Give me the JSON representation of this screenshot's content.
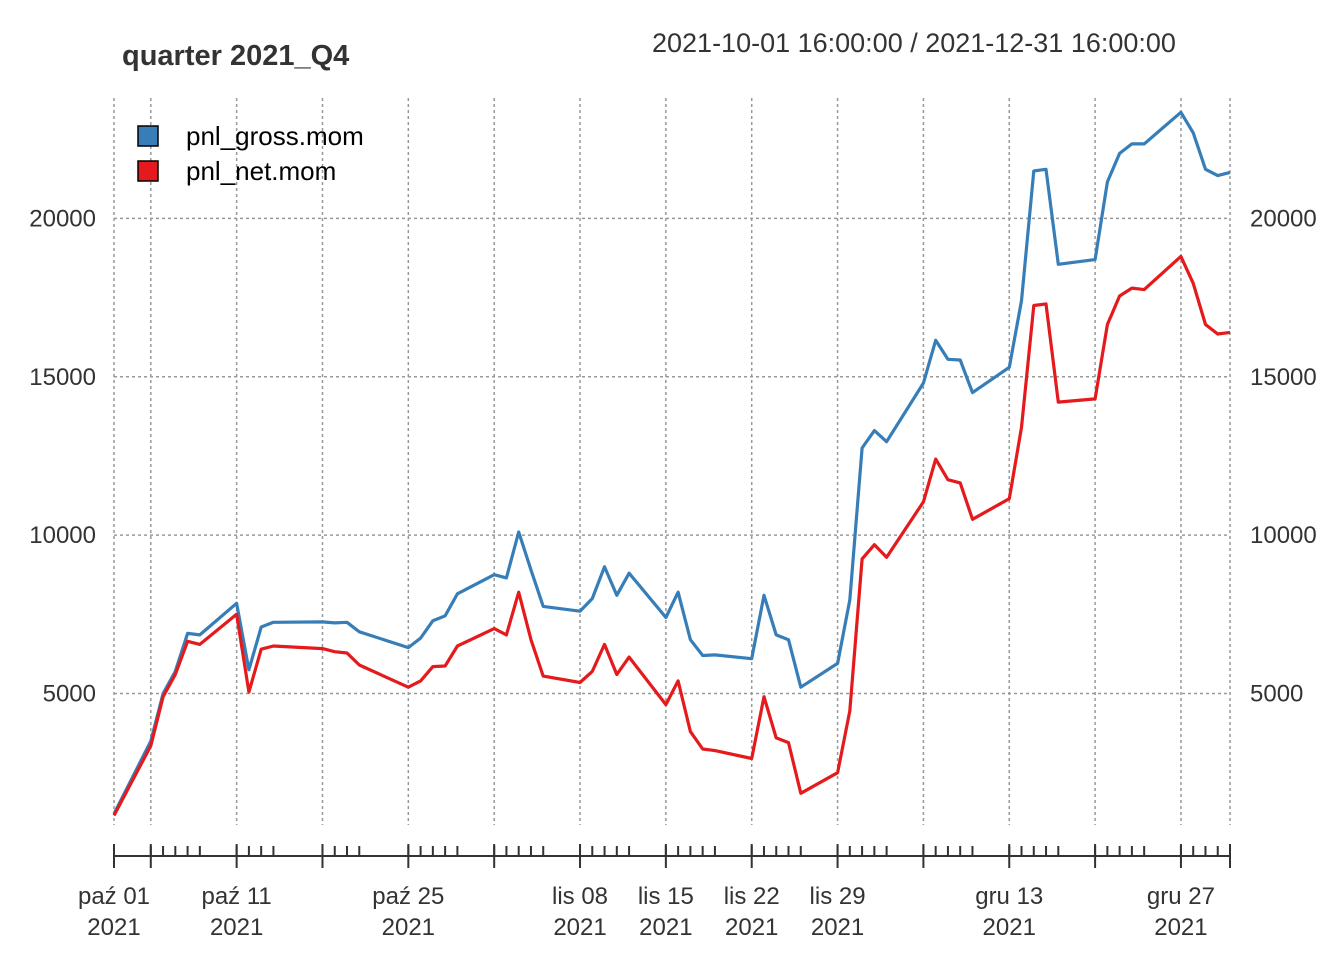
{
  "chart_data": {
    "type": "line",
    "title": "quarter 2021_Q4",
    "subtitle": "2021-10-01 16:00:00 / 2021-12-31 16:00:00",
    "xlabel": "",
    "ylabel": "",
    "ylim": [
      850,
      23800
    ],
    "x_range": [
      "2021-10-01",
      "2021-12-31"
    ],
    "grid": true,
    "legend_position": "top-left",
    "y_ticks": [
      5000,
      10000,
      15000,
      20000
    ],
    "x_tick_labels": [
      {
        "date": "2021-10-01",
        "day": "paź 01",
        "year": "2021"
      },
      {
        "date": "2021-10-11",
        "day": "paź 11",
        "year": "2021"
      },
      {
        "date": "2021-10-25",
        "day": "paź 25",
        "year": "2021"
      },
      {
        "date": "2021-11-08",
        "day": "lis 08",
        "year": "2021"
      },
      {
        "date": "2021-11-15",
        "day": "lis 15",
        "year": "2021"
      },
      {
        "date": "2021-11-22",
        "day": "lis 22",
        "year": "2021"
      },
      {
        "date": "2021-11-29",
        "day": "lis 29",
        "year": "2021"
      },
      {
        "date": "2021-12-13",
        "day": "gru 13",
        "year": "2021"
      },
      {
        "date": "2021-12-27",
        "day": "gru 27",
        "year": "2021"
      }
    ],
    "x": [
      "2021-10-01",
      "2021-10-04",
      "2021-10-05",
      "2021-10-06",
      "2021-10-07",
      "2021-10-08",
      "2021-10-11",
      "2021-10-12",
      "2021-10-13",
      "2021-10-14",
      "2021-10-18",
      "2021-10-19",
      "2021-10-20",
      "2021-10-21",
      "2021-10-25",
      "2021-10-26",
      "2021-10-27",
      "2021-10-28",
      "2021-10-29",
      "2021-11-01",
      "2021-11-02",
      "2021-11-03",
      "2021-11-04",
      "2021-11-05",
      "2021-11-08",
      "2021-11-09",
      "2021-11-10",
      "2021-11-11",
      "2021-11-12",
      "2021-11-15",
      "2021-11-16",
      "2021-11-17",
      "2021-11-18",
      "2021-11-19",
      "2021-11-22",
      "2021-11-23",
      "2021-11-24",
      "2021-11-25",
      "2021-11-26",
      "2021-11-29",
      "2021-11-30",
      "2021-12-01",
      "2021-12-02",
      "2021-12-03",
      "2021-12-06",
      "2021-12-07",
      "2021-12-08",
      "2021-12-09",
      "2021-12-10",
      "2021-12-13",
      "2021-12-14",
      "2021-12-15",
      "2021-12-16",
      "2021-12-17",
      "2021-12-20",
      "2021-12-21",
      "2021-12-22",
      "2021-12-23",
      "2021-12-24",
      "2021-12-27",
      "2021-12-28",
      "2021-12-29",
      "2021-12-30",
      "2021-12-31"
    ],
    "series": [
      {
        "name": "pnl_gross.mom",
        "color": "#377EB8",
        "values": [
          1200,
          3500,
          5000,
          5700,
          6900,
          6850,
          7850,
          5750,
          7100,
          7250,
          7260,
          7230,
          7250,
          6950,
          6450,
          6750,
          7300,
          7450,
          8150,
          8750,
          8650,
          10100,
          8900,
          7750,
          7600,
          8000,
          9000,
          8100,
          8800,
          7400,
          8200,
          6700,
          6200,
          6220,
          6100,
          8100,
          6850,
          6700,
          5200,
          5950,
          7950,
          12750,
          13300,
          12950,
          14800,
          16150,
          15550,
          15530,
          14500,
          15300,
          17400,
          21500,
          21550,
          18550,
          18700,
          21150,
          22050,
          22350,
          22350,
          23350,
          22700,
          21550,
          21350,
          21450
        ]
      },
      {
        "name": "pnl_net.mom",
        "color": "#E41A1C",
        "values": [
          1150,
          3350,
          4900,
          5600,
          6650,
          6550,
          7500,
          5050,
          6400,
          6500,
          6420,
          6320,
          6280,
          5900,
          5200,
          5400,
          5850,
          5870,
          6500,
          7050,
          6850,
          8200,
          6700,
          5550,
          5350,
          5700,
          6550,
          5600,
          6150,
          4650,
          5400,
          3800,
          3250,
          3200,
          2950,
          4900,
          3600,
          3450,
          1850,
          2500,
          4450,
          9250,
          9700,
          9300,
          11050,
          12400,
          11750,
          11650,
          10500,
          11150,
          13400,
          17250,
          17300,
          14200,
          14300,
          16650,
          17550,
          17800,
          17750,
          18800,
          17950,
          16650,
          16350,
          16400
        ]
      }
    ]
  }
}
